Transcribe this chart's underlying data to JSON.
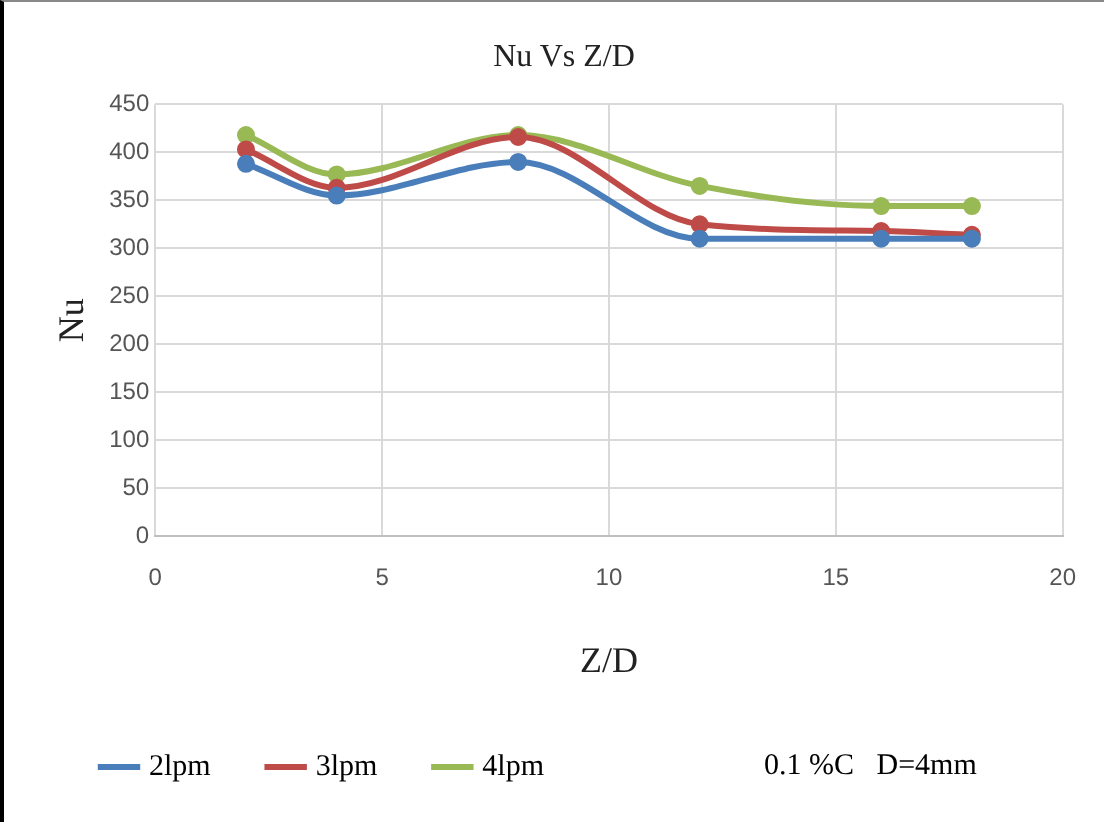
{
  "chart_data": {
    "type": "line",
    "title": "Nu Vs Z/D",
    "xlabel": "Z/D",
    "ylabel": "Nu",
    "x": [
      2,
      4,
      8,
      12,
      16,
      18
    ],
    "series": [
      {
        "name": "2lpm",
        "color": "#4a7ebb",
        "values": [
          388,
          355,
          390,
          310,
          310,
          310
        ]
      },
      {
        "name": "3lpm",
        "color": "#be4b48",
        "values": [
          403,
          363,
          416,
          325,
          318,
          314
        ]
      },
      {
        "name": "4lpm",
        "color": "#98b954",
        "values": [
          418,
          377,
          418,
          365,
          344,
          344
        ]
      }
    ],
    "xlim": [
      0,
      20
    ],
    "xticks": [
      0,
      5,
      10,
      15,
      20
    ],
    "ylim": [
      0,
      450
    ],
    "yticks": [
      0,
      50,
      100,
      150,
      200,
      250,
      300,
      350,
      400,
      450
    ],
    "grid": true,
    "legend": "bottom",
    "marker": "circle",
    "line_style": "solid",
    "annotations": [
      "0.1 %C   D=4mm"
    ]
  }
}
